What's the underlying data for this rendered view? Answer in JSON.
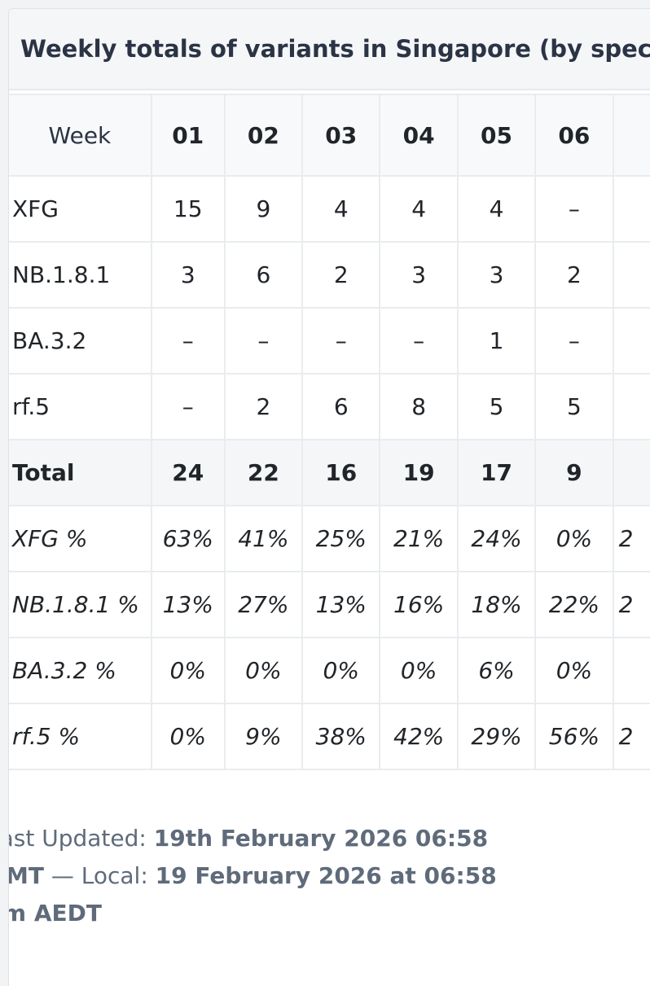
{
  "caption": "Weekly totals of variants in Singapore (by specimen",
  "table": {
    "header_label": "Week",
    "weeks": [
      "01",
      "02",
      "03",
      "04",
      "05",
      "06",
      ""
    ],
    "rows": [
      {
        "label": "XFG",
        "values": [
          "15",
          "9",
          "4",
          "4",
          "4",
          "–",
          ""
        ],
        "kind": "count"
      },
      {
        "label": "NB.1.8.1",
        "values": [
          "3",
          "6",
          "2",
          "3",
          "3",
          "2",
          ""
        ],
        "kind": "count"
      },
      {
        "label": "BA.3.2",
        "values": [
          "–",
          "–",
          "–",
          "–",
          "1",
          "–",
          ""
        ],
        "kind": "count"
      },
      {
        "label": "rf.5",
        "values": [
          "–",
          "2",
          "6",
          "8",
          "5",
          "5",
          ""
        ],
        "kind": "count"
      },
      {
        "label": "Total",
        "values": [
          "24",
          "22",
          "16",
          "19",
          "17",
          "9",
          ""
        ],
        "kind": "total"
      },
      {
        "label": "XFG %",
        "values": [
          "63%",
          "41%",
          "25%",
          "21%",
          "24%",
          "0%",
          "2"
        ],
        "kind": "pct"
      },
      {
        "label": "NB.1.8.1 %",
        "values": [
          "13%",
          "27%",
          "13%",
          "16%",
          "18%",
          "22%",
          "2"
        ],
        "kind": "pct"
      },
      {
        "label": "BA.3.2 %",
        "values": [
          "0%",
          "0%",
          "0%",
          "0%",
          "6%",
          "0%",
          ""
        ],
        "kind": "pct"
      },
      {
        "label": "rf.5 %",
        "values": [
          "0%",
          "9%",
          "38%",
          "42%",
          "29%",
          "56%",
          "2"
        ],
        "kind": "pct"
      }
    ]
  },
  "footer": {
    "last_updated_label": "Last Updated:",
    "last_updated_value": "19th February 2026 06:58",
    "tz_label": "GMT",
    "local_label": " — Local:",
    "local_value": "19 February 2026 at 06:58",
    "local_tz": "am AEDT"
  }
}
